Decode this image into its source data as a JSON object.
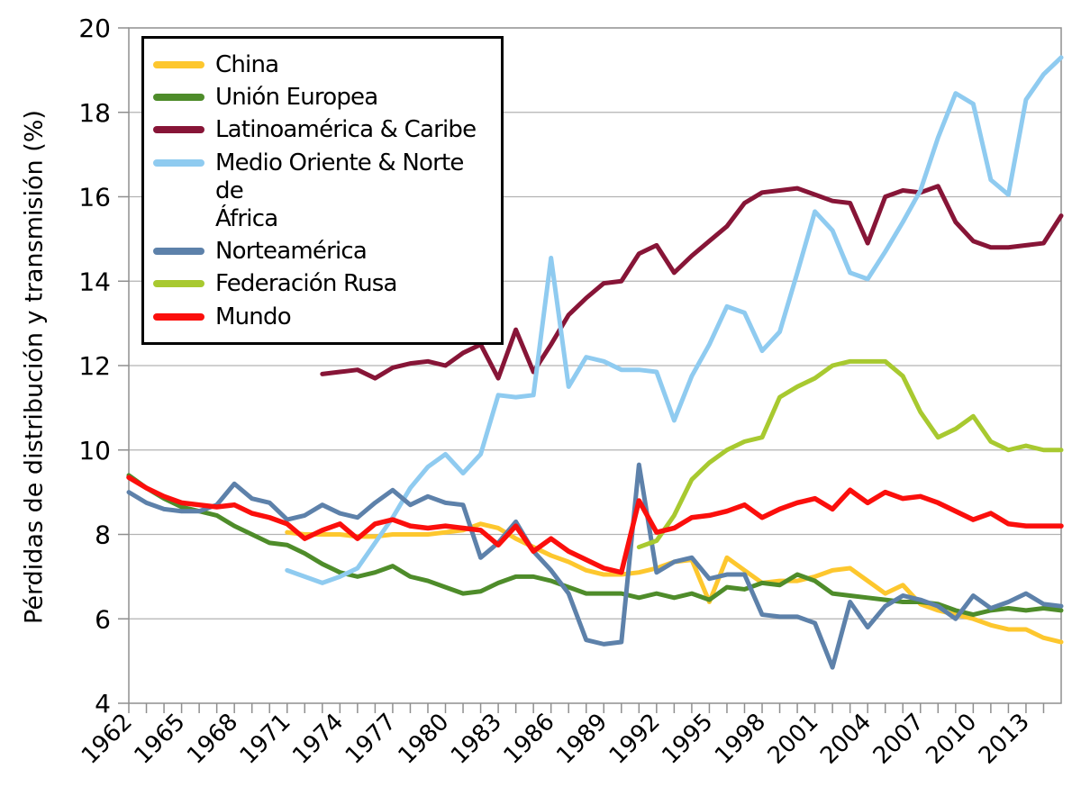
{
  "figure": {
    "y_axis_title": "Pérdidas de distribución y transmisión (%)"
  },
  "style": {
    "background": "#ffffff",
    "grid_color": "#b3b3b3",
    "axis_color": "#8f8f8f",
    "tick_color": "#8f8f8f",
    "text_color": "#000000",
    "legend_border_color": "#000000"
  },
  "legend": {
    "items": [
      {
        "label": "China",
        "color": "#fdc72e"
      },
      {
        "label": "Unión Europea",
        "color": "#4e8c2a"
      },
      {
        "label": "Latinoamérica & Caribe",
        "color": "#871537"
      },
      {
        "label": "Medio Oriente & Norte de\nÁfrica",
        "color": "#8fcbf0"
      },
      {
        "label": "Norteamérica",
        "color": "#5d81aa"
      },
      {
        "label": "Federación Rusa",
        "color": "#a8c930"
      },
      {
        "label": "Mundo",
        "color": "#fb0f0c"
      }
    ]
  },
  "chart_data": {
    "type": "line",
    "title": "",
    "xlabel": "",
    "ylabel": "Pérdidas de distribución y transmisión (%)",
    "xlim": [
      1962,
      2015
    ],
    "ylim": [
      4,
      20
    ],
    "grid": "horizontal",
    "legend_position": "top-left",
    "x_tick_labels": [
      1962,
      1965,
      1968,
      1971,
      1974,
      1977,
      1980,
      1983,
      1986,
      1989,
      1992,
      1995,
      1998,
      2001,
      2004,
      2007,
      2010,
      2013
    ],
    "y_tick_labels": [
      4,
      6,
      8,
      10,
      12,
      14,
      16,
      18,
      20
    ],
    "gridline_values": [
      6,
      8,
      10,
      12,
      14,
      16,
      18
    ],
    "x": [
      1962,
      1963,
      1964,
      1965,
      1966,
      1967,
      1968,
      1969,
      1970,
      1971,
      1972,
      1973,
      1974,
      1975,
      1976,
      1977,
      1978,
      1979,
      1980,
      1981,
      1982,
      1983,
      1984,
      1985,
      1986,
      1987,
      1988,
      1989,
      1990,
      1991,
      1992,
      1993,
      1994,
      1995,
      1996,
      1997,
      1998,
      1999,
      2000,
      2001,
      2002,
      2003,
      2004,
      2005,
      2006,
      2007,
      2008,
      2009,
      2010,
      2011,
      2012,
      2013,
      2014,
      2015
    ],
    "series": [
      {
        "name": "China",
        "color": "#fdc72e",
        "stroke_width": 5,
        "values": [
          null,
          null,
          null,
          null,
          null,
          null,
          null,
          null,
          null,
          8.05,
          8.0,
          8.0,
          8.0,
          7.95,
          7.95,
          8.0,
          8.0,
          8.0,
          8.05,
          8.1,
          8.25,
          8.15,
          7.9,
          7.7,
          7.5,
          7.35,
          7.15,
          7.05,
          7.05,
          7.1,
          7.2,
          7.35,
          7.4,
          6.4,
          7.45,
          7.15,
          6.85,
          6.9,
          6.9,
          7.0,
          7.15,
          7.2,
          6.9,
          6.6,
          6.8,
          6.35,
          6.2,
          6.1,
          6.0,
          5.85,
          5.75,
          5.75,
          5.55,
          5.45
        ]
      },
      {
        "name": "Unión Europea",
        "color": "#4e8c2a",
        "stroke_width": 5,
        "values": [
          9.4,
          9.1,
          8.85,
          8.65,
          8.55,
          8.45,
          8.2,
          8.0,
          7.8,
          7.75,
          7.55,
          7.3,
          7.1,
          7.0,
          7.1,
          7.25,
          7.0,
          6.9,
          6.75,
          6.6,
          6.65,
          6.85,
          7.0,
          7.0,
          6.9,
          6.75,
          6.6,
          6.6,
          6.6,
          6.5,
          6.6,
          6.5,
          6.6,
          6.45,
          6.75,
          6.7,
          6.85,
          6.8,
          7.05,
          6.9,
          6.6,
          6.55,
          6.5,
          6.45,
          6.4,
          6.4,
          6.35,
          6.2,
          6.1,
          6.2,
          6.25,
          6.2,
          6.25,
          6.2
        ]
      },
      {
        "name": "Latinoamérica & Caribe",
        "color": "#871537",
        "stroke_width": 5,
        "values": [
          null,
          null,
          null,
          null,
          null,
          null,
          null,
          null,
          null,
          null,
          null,
          11.8,
          11.85,
          11.9,
          11.7,
          11.95,
          12.05,
          12.1,
          12.0,
          12.3,
          12.5,
          11.7,
          12.85,
          11.85,
          12.5,
          13.2,
          13.6,
          13.95,
          14.0,
          14.65,
          14.85,
          14.2,
          14.6,
          14.95,
          15.3,
          15.85,
          16.1,
          16.15,
          16.2,
          16.05,
          15.9,
          15.85,
          14.9,
          16.0,
          16.15,
          16.1,
          16.25,
          15.4,
          14.95,
          14.8,
          14.8,
          14.85,
          14.9,
          15.55
        ]
      },
      {
        "name": "Medio Oriente & Norte de África",
        "color": "#8fcbf0",
        "stroke_width": 5,
        "values": [
          null,
          null,
          null,
          null,
          null,
          null,
          null,
          null,
          null,
          7.15,
          7.0,
          6.85,
          7.0,
          7.2,
          7.8,
          8.4,
          9.1,
          9.6,
          9.9,
          9.45,
          9.9,
          11.3,
          11.25,
          11.3,
          14.55,
          11.5,
          12.2,
          12.1,
          11.9,
          11.9,
          11.85,
          10.7,
          11.75,
          12.5,
          13.4,
          13.25,
          12.35,
          12.8,
          14.2,
          15.65,
          15.2,
          14.2,
          14.05,
          14.7,
          15.4,
          16.15,
          17.4,
          18.45,
          18.2,
          16.4,
          16.05,
          18.3,
          18.9,
          19.3
        ]
      },
      {
        "name": "Norteamérica",
        "color": "#5d81aa",
        "stroke_width": 5,
        "values": [
          9.0,
          8.75,
          8.6,
          8.55,
          8.55,
          8.7,
          9.2,
          8.85,
          8.75,
          8.35,
          8.45,
          8.7,
          8.5,
          8.4,
          8.75,
          9.05,
          8.7,
          8.9,
          8.75,
          8.7,
          7.45,
          7.8,
          8.3,
          7.6,
          7.15,
          6.6,
          5.5,
          5.4,
          5.45,
          9.65,
          7.1,
          7.35,
          7.45,
          6.95,
          7.05,
          7.05,
          6.1,
          6.05,
          6.05,
          5.9,
          4.85,
          6.4,
          5.8,
          6.3,
          6.55,
          6.45,
          6.3,
          6.0,
          6.55,
          6.25,
          6.4,
          6.6,
          6.35,
          6.3
        ]
      },
      {
        "name": "Federación Rusa",
        "color": "#a8c930",
        "stroke_width": 5,
        "values": [
          null,
          null,
          null,
          null,
          null,
          null,
          null,
          null,
          null,
          null,
          null,
          null,
          null,
          null,
          null,
          null,
          null,
          null,
          null,
          null,
          null,
          null,
          null,
          null,
          null,
          null,
          null,
          null,
          null,
          7.7,
          7.85,
          8.45,
          9.3,
          9.7,
          10.0,
          10.2,
          10.3,
          11.25,
          11.5,
          11.7,
          12.0,
          12.1,
          12.1,
          12.1,
          11.75,
          10.9,
          10.3,
          10.5,
          10.8,
          10.2,
          10.0,
          10.1,
          10.0,
          10.0
        ]
      },
      {
        "name": "Mundo",
        "color": "#fb0f0c",
        "stroke_width": 5.5,
        "values": [
          9.35,
          9.1,
          8.9,
          8.75,
          8.7,
          8.65,
          8.7,
          8.5,
          8.4,
          8.25,
          7.9,
          8.1,
          8.25,
          7.9,
          8.25,
          8.35,
          8.2,
          8.15,
          8.2,
          8.15,
          8.1,
          7.75,
          8.2,
          7.6,
          7.9,
          7.6,
          7.4,
          7.2,
          7.1,
          8.8,
          8.05,
          8.15,
          8.4,
          8.45,
          8.55,
          8.7,
          8.4,
          8.6,
          8.75,
          8.85,
          8.6,
          9.05,
          8.75,
          9.0,
          8.85,
          8.9,
          8.75,
          8.55,
          8.35,
          8.5,
          8.25,
          8.2,
          8.2,
          8.2
        ]
      }
    ]
  }
}
